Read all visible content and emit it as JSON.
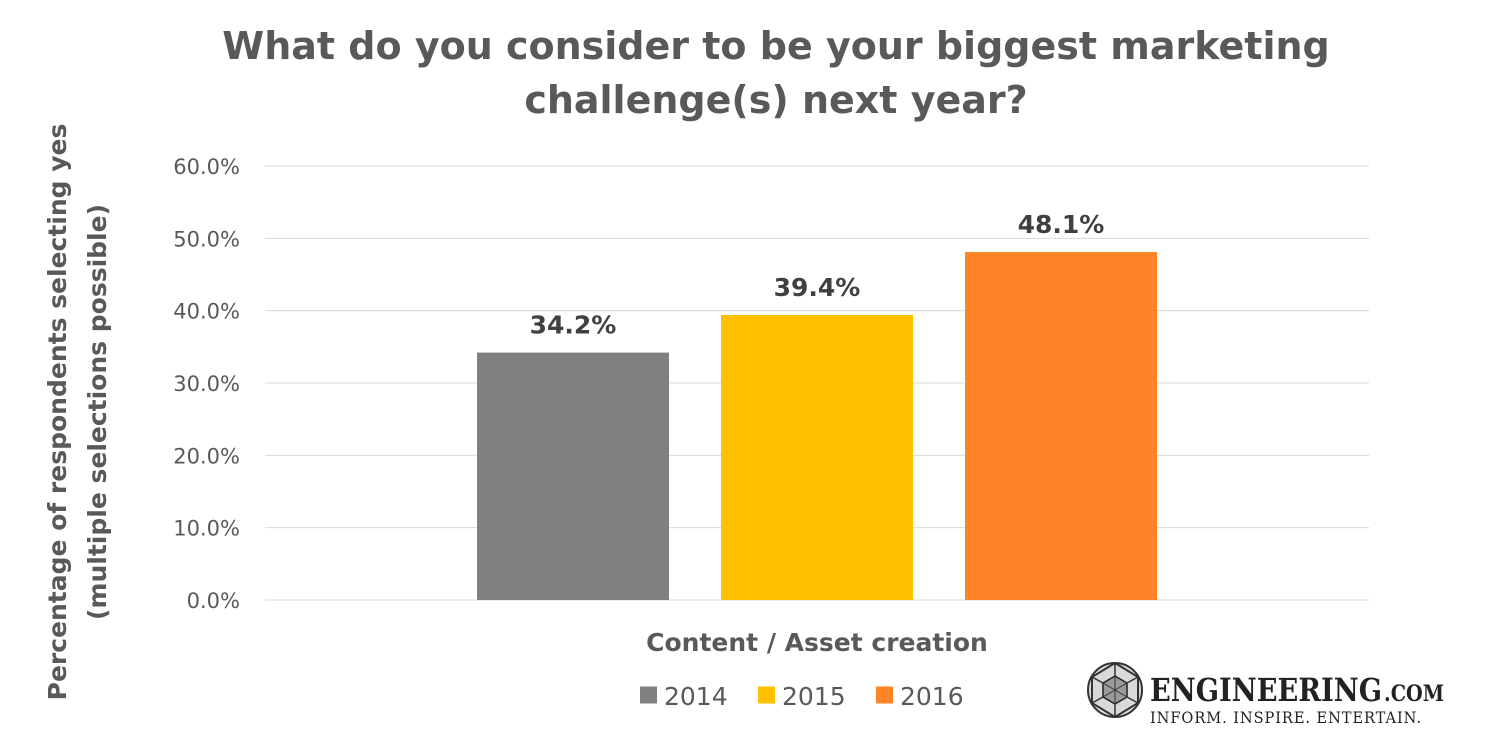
{
  "title_lines": [
    "What do you consider to be your biggest marketing",
    "challenge(s) next year?"
  ],
  "chart_data": {
    "type": "bar",
    "title": "What do you consider to be your biggest marketing challenge(s) next year?",
    "xlabel": "Content / Asset creation",
    "ylabel_lines": [
      "Percentage of respondents selecting yes",
      "(multiple selections possible)"
    ],
    "ylim": [
      0,
      60
    ],
    "y_ticks": [
      "0.0%",
      "10.0%",
      "20.0%",
      "30.0%",
      "40.0%",
      "50.0%",
      "60.0%"
    ],
    "grid": true,
    "categories": [
      "Content / Asset creation"
    ],
    "series": [
      {
        "name": "2014",
        "values": [
          34.2
        ],
        "label": "34.2%",
        "color": "#808080"
      },
      {
        "name": "2015",
        "values": [
          39.4
        ],
        "label": "39.4%",
        "color": "#FFC000"
      },
      {
        "name": "2016",
        "values": [
          48.1
        ],
        "label": "48.1%",
        "color": "#FF8427"
      }
    ],
    "legend_position": "bottom"
  },
  "logo": {
    "name": "ENGINEERING",
    "suffix": ".COM",
    "tagline": "INFORM. INSPIRE. ENTERTAIN.",
    "icon": "geodesic-sphere-icon"
  }
}
